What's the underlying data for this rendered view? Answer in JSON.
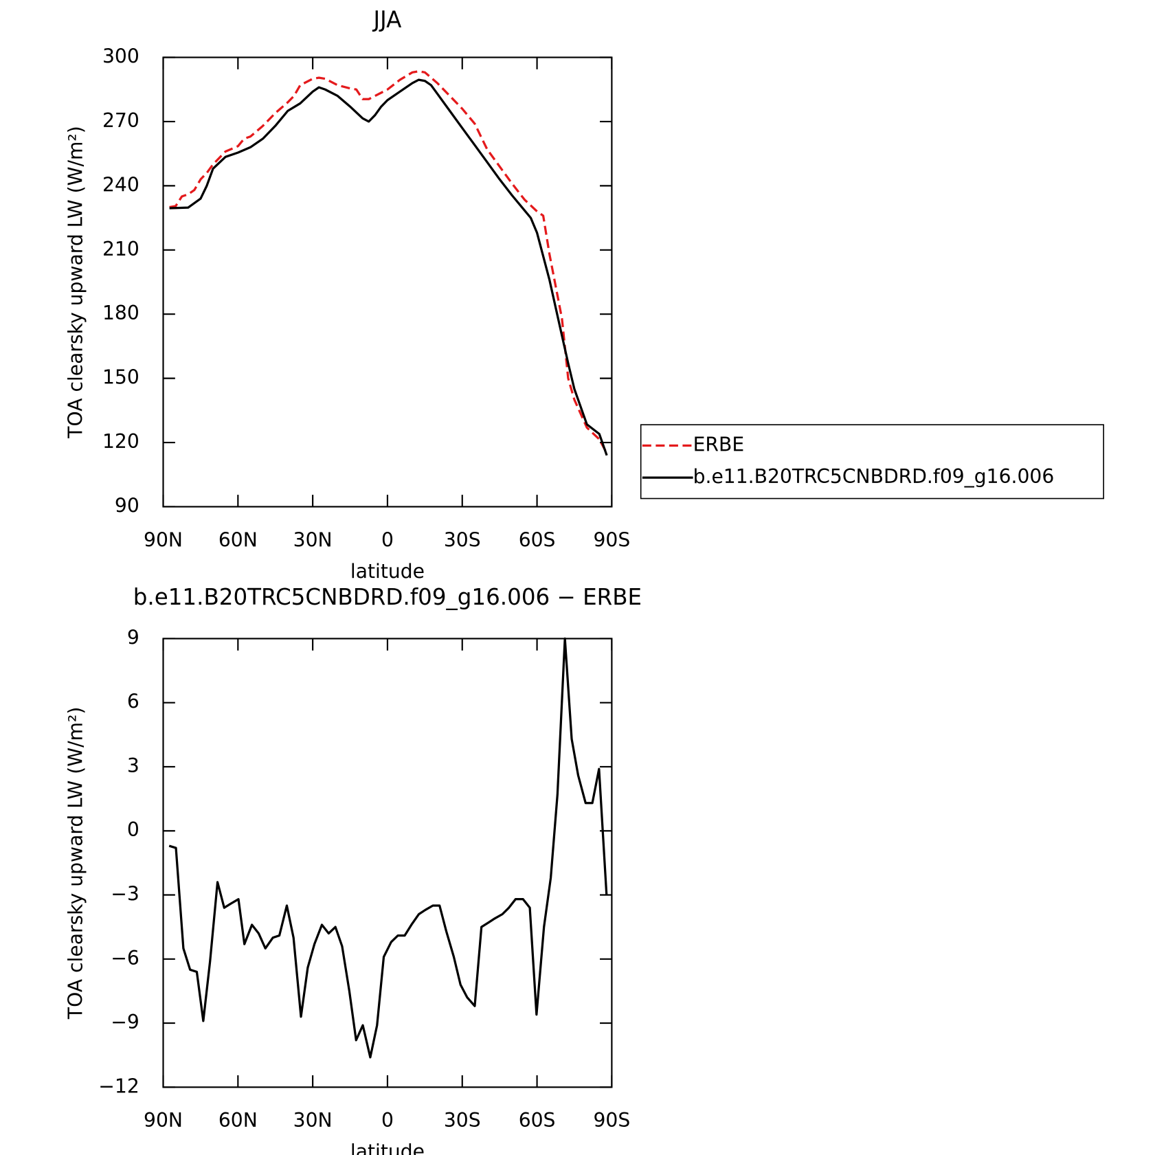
{
  "chart_data": [
    {
      "type": "line",
      "title": "JJA",
      "xlabel": "latitude",
      "ylabel": "TOA clearsky upward LW (W/m²)",
      "xlim": [
        90,
        -90
      ],
      "ylim": [
        90,
        300
      ],
      "xticks": [
        {
          "value": 90,
          "label": "90N"
        },
        {
          "value": 60,
          "label": "60N"
        },
        {
          "value": 30,
          "label": "30N"
        },
        0,
        {
          "value": -30,
          "label": "30S"
        },
        {
          "value": -60,
          "label": "60S"
        },
        {
          "value": -90,
          "label": "90S"
        }
      ],
      "yticks": [
        90,
        120,
        150,
        180,
        210,
        240,
        270,
        300
      ],
      "legend": "right",
      "series": [
        {
          "name": "ERBE",
          "color": "#e41a1c",
          "dash": true,
          "x": [
            87.5,
            85,
            82.5,
            80,
            77.5,
            75,
            72.5,
            70,
            65,
            60,
            57.5,
            55,
            50,
            45,
            40,
            37.5,
            35,
            30,
            27.5,
            25,
            20,
            15,
            12.5,
            10,
            7.5,
            5,
            0,
            -5,
            -10,
            -12.5,
            -15,
            -20,
            -25,
            -30,
            -35,
            -37.5,
            -40,
            -45,
            -50,
            -55,
            -60,
            -62.5,
            -65,
            -70,
            -72.5,
            -75,
            -80,
            -85,
            -88
          ],
          "values": [
            230,
            230.5,
            235,
            236,
            238,
            243,
            246,
            250,
            256,
            258.5,
            262,
            263,
            268,
            274,
            279,
            282,
            287,
            290,
            290.5,
            290,
            287,
            285.5,
            285,
            280.5,
            280.5,
            282,
            285,
            289.5,
            293,
            293.5,
            293,
            288,
            282,
            276,
            269,
            263,
            257,
            249,
            241,
            233.5,
            228,
            226,
            208,
            178,
            150,
            140,
            127,
            121.5,
            115
          ]
        },
        {
          "name": "b.e11.B20TRC5CNBDRD.f09_g16.006",
          "color": "#000000",
          "dash": false,
          "x": [
            87.5,
            85,
            80,
            75,
            72.5,
            70,
            65,
            60,
            55,
            50,
            45,
            40,
            35,
            30,
            27.5,
            25,
            20,
            15,
            10,
            7.5,
            5,
            2.5,
            0,
            -5,
            -10,
            -12.5,
            -15,
            -17.5,
            -20,
            -25,
            -30,
            -35,
            -40,
            -45,
            -50,
            -55,
            -57.5,
            -60,
            -65,
            -70,
            -72.5,
            -75,
            -80,
            -85,
            -88
          ],
          "values": [
            229.5,
            229.6,
            229.8,
            234,
            240,
            248,
            253.5,
            255.5,
            258,
            262,
            268,
            275,
            278.5,
            284,
            286,
            285,
            282,
            277,
            271.5,
            270,
            273,
            277,
            280,
            284,
            288,
            289.5,
            289,
            287,
            283,
            275,
            267,
            259,
            251,
            243,
            235.5,
            228.5,
            225,
            218,
            196,
            170,
            157,
            145,
            128.5,
            124,
            114
          ]
        }
      ]
    },
    {
      "type": "line",
      "title": "b.e11.B20TRC5CNBDRD.f09_g16.006 − ERBE",
      "xlabel": "latitude",
      "ylabel": "TOA clearsky upward LW (W/m²)",
      "xlim": [
        90,
        -90
      ],
      "ylim": [
        -12,
        9
      ],
      "xticks": [
        {
          "value": 90,
          "label": "90N"
        },
        {
          "value": 60,
          "label": "60N"
        },
        {
          "value": 30,
          "label": "30N"
        },
        0,
        {
          "value": -30,
          "label": "30S"
        },
        {
          "value": -60,
          "label": "60S"
        },
        {
          "value": -90,
          "label": "90S"
        }
      ],
      "yticks": [
        {
          "value": -12,
          "label": "−12"
        },
        {
          "value": -9,
          "label": "−9"
        },
        {
          "value": -6,
          "label": "−6"
        },
        {
          "value": -3,
          "label": "−3"
        },
        0,
        3,
        6,
        9
      ],
      "series": [
        {
          "color": "#000000",
          "dash": false,
          "x": [
            87.6,
            84.9,
            81.9,
            79.2,
            76.5,
            73.9,
            71.2,
            68.2,
            65.5,
            62.8,
            59.8,
            57.4,
            54.4,
            51.7,
            49.0,
            46.0,
            43.4,
            40.4,
            37.7,
            34.7,
            32.0,
            29.3,
            26.3,
            23.6,
            20.9,
            18.2,
            15.3,
            12.6,
            9.9,
            6.9,
            4.2,
            1.5,
            -1.5,
            -4.2,
            -6.9,
            -9.6,
            -12.6,
            -15.2,
            -18.2,
            -20.9,
            -23.6,
            -26.6,
            -29.3,
            -32.0,
            -35.0,
            -37.7,
            -40.4,
            -43.1,
            -46.1,
            -48.7,
            -51.4,
            -54.4,
            -57.1,
            -59.8,
            -62.8,
            -65.5,
            -68.2,
            -71.2,
            -73.9,
            -76.5,
            -79.5,
            -82.2,
            -84.9,
            -87.9
          ],
          "values": [
            -0.7,
            -0.8,
            -5.5,
            -6.5,
            -6.6,
            -8.9,
            -6.1,
            -2.4,
            -3.6,
            -3.4,
            -3.2,
            -5.3,
            -4.4,
            -4.8,
            -5.5,
            -5.0,
            -4.9,
            -3.5,
            -5.0,
            -8.7,
            -6.4,
            -5.3,
            -4.4,
            -4.8,
            -4.5,
            -5.4,
            -7.5,
            -9.8,
            -9.1,
            -10.6,
            -9.1,
            -5.9,
            -5.2,
            -4.9,
            -4.9,
            -4.4,
            -3.9,
            -3.7,
            -3.5,
            -3.5,
            -4.7,
            -5.9,
            -7.2,
            -7.8,
            -8.2,
            -4.5,
            -4.3,
            -4.1,
            -3.9,
            -3.6,
            -3.2,
            -3.2,
            -3.6,
            -8.6,
            -4.5,
            -2.2,
            1.7,
            9.0,
            4.3,
            2.6,
            1.3,
            1.3,
            2.9,
            -3.0
          ]
        }
      ]
    }
  ]
}
